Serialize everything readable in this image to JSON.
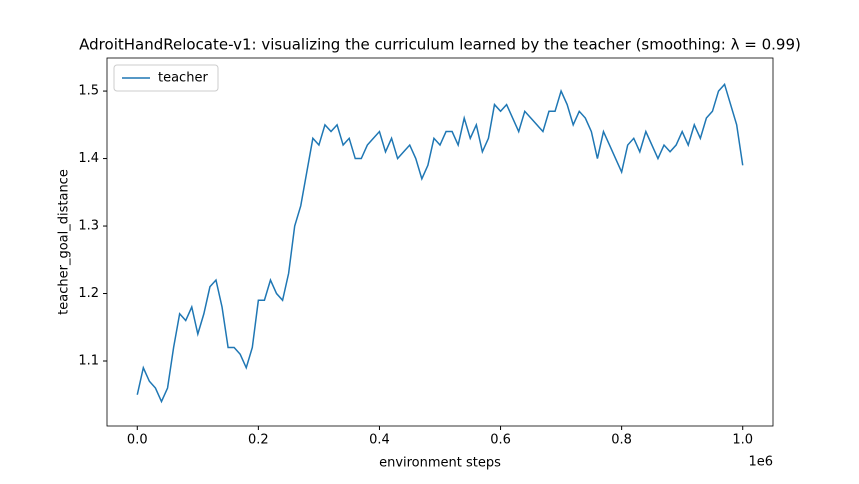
{
  "chart_data": {
    "type": "line",
    "title": "AdroitHandRelocate-v1: visualizing the curriculum learned by the teacher (smoothing: λ = 0.99)",
    "x_label": "environment steps",
    "y_label": "teacher_goal_distance",
    "x_offset_label": "1e6",
    "x": [
      0,
      10000,
      20000,
      30000,
      40000,
      50000,
      60000,
      70000,
      80000,
      90000,
      100000,
      110000,
      120000,
      130000,
      140000,
      150000,
      160000,
      170000,
      180000,
      190000,
      200000,
      210000,
      220000,
      230000,
      240000,
      250000,
      260000,
      270000,
      280000,
      290000,
      300000,
      310000,
      320000,
      330000,
      340000,
      350000,
      360000,
      370000,
      380000,
      390000,
      400000,
      410000,
      420000,
      430000,
      440000,
      450000,
      460000,
      470000,
      480000,
      490000,
      500000,
      510000,
      520000,
      530000,
      540000,
      550000,
      560000,
      570000,
      580000,
      590000,
      600000,
      610000,
      620000,
      630000,
      640000,
      650000,
      660000,
      670000,
      680000,
      690000,
      700000,
      710000,
      720000,
      730000,
      740000,
      750000,
      760000,
      770000,
      780000,
      790000,
      800000,
      810000,
      820000,
      830000,
      840000,
      850000,
      860000,
      870000,
      880000,
      890000,
      900000,
      910000,
      920000,
      930000,
      940000,
      950000,
      960000,
      970000,
      980000,
      990000,
      1000000
    ],
    "series": [
      {
        "name": "teacher",
        "color": "#1f77b4",
        "values": [
          1.05,
          1.09,
          1.07,
          1.06,
          1.04,
          1.06,
          1.12,
          1.17,
          1.16,
          1.18,
          1.14,
          1.17,
          1.21,
          1.22,
          1.18,
          1.12,
          1.12,
          1.11,
          1.09,
          1.12,
          1.19,
          1.19,
          1.22,
          1.2,
          1.19,
          1.23,
          1.3,
          1.33,
          1.38,
          1.43,
          1.42,
          1.45,
          1.44,
          1.45,
          1.42,
          1.43,
          1.4,
          1.4,
          1.42,
          1.43,
          1.44,
          1.41,
          1.43,
          1.4,
          1.41,
          1.42,
          1.4,
          1.37,
          1.39,
          1.43,
          1.42,
          1.44,
          1.44,
          1.42,
          1.46,
          1.43,
          1.45,
          1.41,
          1.43,
          1.48,
          1.47,
          1.48,
          1.46,
          1.44,
          1.47,
          1.46,
          1.45,
          1.44,
          1.47,
          1.47,
          1.5,
          1.48,
          1.45,
          1.47,
          1.46,
          1.44,
          1.4,
          1.44,
          1.42,
          1.4,
          1.38,
          1.42,
          1.43,
          1.41,
          1.44,
          1.42,
          1.4,
          1.42,
          1.41,
          1.42,
          1.44,
          1.42,
          1.45,
          1.43,
          1.46,
          1.47,
          1.5,
          1.51,
          1.48,
          1.45,
          1.39
        ]
      }
    ],
    "xlim": [
      -50000,
      1050000
    ],
    "xticks": [
      {
        "value": 0,
        "label": "0.0"
      },
      {
        "value": 200000,
        "label": "0.2"
      },
      {
        "value": 400000,
        "label": "0.4"
      },
      {
        "value": 600000,
        "label": "0.6"
      },
      {
        "value": 800000,
        "label": "0.8"
      },
      {
        "value": 1000000,
        "label": "1.0"
      }
    ],
    "ylim": [
      1.0037,
      1.549
    ],
    "yticks": [
      1.1,
      1.2,
      1.3,
      1.4,
      1.5
    ],
    "grid": false,
    "legend": "upper left"
  }
}
